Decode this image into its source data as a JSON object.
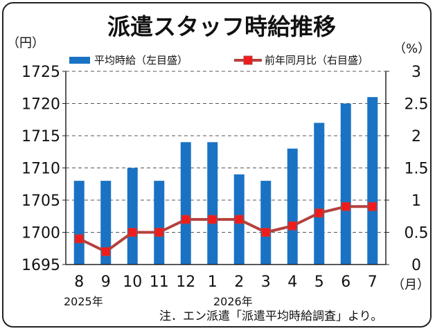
{
  "chart_data": {
    "type": "bar+line",
    "title": "派遣スタッフ時給推移",
    "left_unit": "（円）",
    "right_unit": "（%）",
    "x_unit": "（月）",
    "categories": [
      "8",
      "9",
      "10",
      "11",
      "12",
      "1",
      "2",
      "3",
      "4",
      "5",
      "6",
      "7"
    ],
    "year_labels": [
      "2025年",
      "2026年"
    ],
    "series": [
      {
        "name": "平均時給（左目盛）",
        "type": "bar",
        "axis": "left",
        "color": "#1a72c4",
        "values": [
          1708,
          1708,
          1710,
          1708,
          1714,
          1714,
          1709,
          1708,
          1713,
          1717,
          1720,
          1721
        ]
      },
      {
        "name": "前年同月比（右目盛）",
        "type": "line",
        "axis": "right",
        "color": "#b5413d",
        "marker_color": "#ee1c1c",
        "values": [
          0.4,
          0.2,
          0.5,
          0.5,
          0.7,
          0.7,
          0.7,
          0.5,
          0.6,
          0.8,
          0.9,
          0.9
        ]
      }
    ],
    "left_axis": {
      "min": 1695,
      "max": 1725,
      "ticks": [
        "1695",
        "1700",
        "1705",
        "1710",
        "1715",
        "1720",
        "1725"
      ]
    },
    "right_axis": {
      "min": 0,
      "max": 3,
      "ticks": [
        "0",
        "0.5",
        "1",
        "1.5",
        "2",
        "2.5",
        "3"
      ]
    },
    "grid": true
  },
  "note": "注．エン派遣「派遣平均時給調査」より。"
}
